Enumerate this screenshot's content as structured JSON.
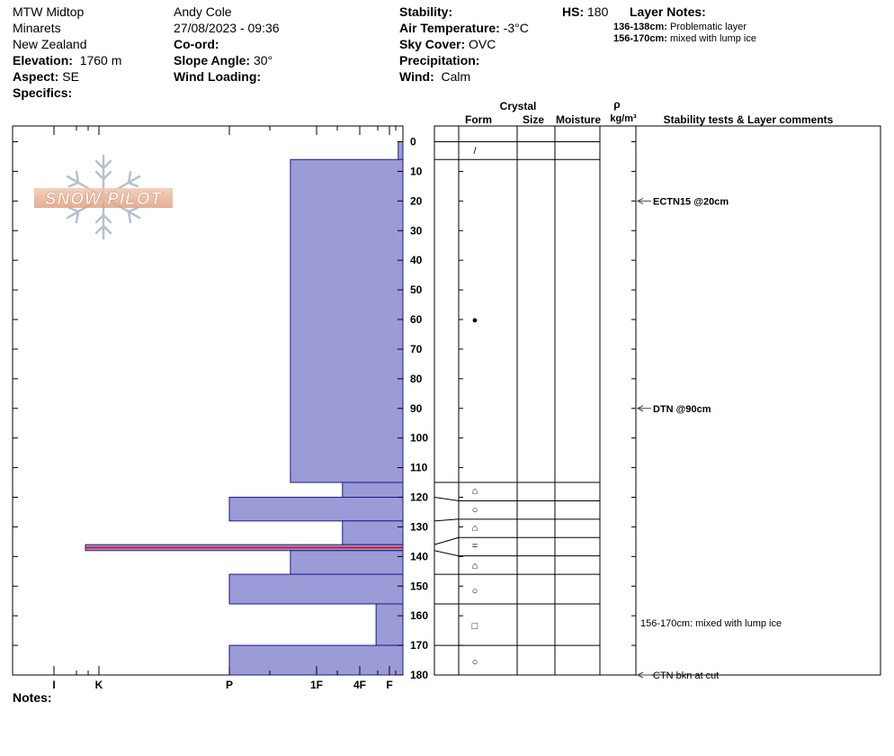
{
  "header": {
    "site_name": "MTW Midtop",
    "area": "Minarets",
    "country": "New Zealand",
    "elevation_label": "Elevation:",
    "elevation_value": "1760 m",
    "aspect_label": "Aspect:",
    "aspect_value": "SE",
    "specifics_label": "Specifics:",
    "observer": "Andy Cole",
    "datetime": "27/08/2023 - 09:36",
    "coord_label": "Co-ord:",
    "slope_label": "Slope Angle:",
    "slope_value": "30°",
    "wind_loading_label": "Wind Loading:",
    "stability_label": "Stability:",
    "air_temp_label": "Air Temperature:",
    "air_temp_value": "-3°C",
    "sky_label": "Sky Cover:",
    "sky_value": "OVC",
    "precip_label": "Precipitation:",
    "wind_label": "Wind:",
    "wind_value": "Calm",
    "hs_label": "HS:",
    "hs_value": "180",
    "layer_notes_title": "Layer Notes:",
    "layer_notes": [
      {
        "range": "136-138cm:",
        "text": "Problematic layer"
      },
      {
        "range": "156-170cm:",
        "text": "mixed with lump ice"
      }
    ]
  },
  "logo_text": "SNOW PILOT",
  "notes_label": "Notes:",
  "column_headers": {
    "crystal": "Crystal",
    "form": "Form",
    "size": "Size",
    "moisture": "Moisture",
    "rho": "ρ",
    "density_unit": "kg/m³",
    "comments": "Stability tests & Layer comments"
  },
  "chart_data": {
    "type": "bar",
    "orientation": "horizontal",
    "description_axis": "depth (cm)",
    "y_ticks": [
      0,
      10,
      20,
      30,
      40,
      50,
      60,
      70,
      80,
      90,
      100,
      110,
      120,
      130,
      140,
      150,
      160,
      170,
      180
    ],
    "ylim": [
      0,
      180
    ],
    "hardness_ticks": [
      "I",
      "K",
      "P",
      "1F",
      "4F",
      "F"
    ],
    "hardness_tick_values": [
      6,
      5,
      4,
      3,
      2,
      1
    ],
    "layers": [
      {
        "top": 0,
        "bottom": 6,
        "hardness": 0.35,
        "form": "/"
      },
      {
        "top": 6,
        "bottom": 115,
        "hardness": 3.3,
        "form": "●"
      },
      {
        "top": 115,
        "bottom": 120,
        "hardness": 2.4,
        "form": "⌂"
      },
      {
        "top": 120,
        "bottom": 128,
        "hardness": 4.0,
        "form": "○"
      },
      {
        "top": 128,
        "bottom": 136,
        "hardness": 2.4,
        "form": "⌂"
      },
      {
        "top": 136,
        "bottom": 138,
        "hardness": 5.3,
        "form": "=",
        "problematic": true
      },
      {
        "top": 138,
        "bottom": 146,
        "hardness": 3.3,
        "form": "⌂"
      },
      {
        "top": 146,
        "bottom": 156,
        "hardness": 4.0,
        "form": "○"
      },
      {
        "top": 156,
        "bottom": 170,
        "hardness": 1.45,
        "form": "□"
      },
      {
        "top": 170,
        "bottom": 180,
        "hardness": 4.0,
        "form": "○"
      }
    ],
    "comments": [
      {
        "depth": 20,
        "text": "ECTN15 @20cm",
        "style": "bold"
      },
      {
        "depth": 90,
        "text": "DTN @90cm",
        "style": "bold"
      },
      {
        "depth": 163,
        "text": "156-170cm:  mixed with lump ice",
        "style": "range"
      },
      {
        "depth": 180,
        "text": "CTN  bkn at cut",
        "style": "ctn"
      }
    ],
    "colors": {
      "bar_fill": "#9b9bd7",
      "bar_stroke": "#1a1a8c",
      "problematic": "#e01010"
    }
  }
}
